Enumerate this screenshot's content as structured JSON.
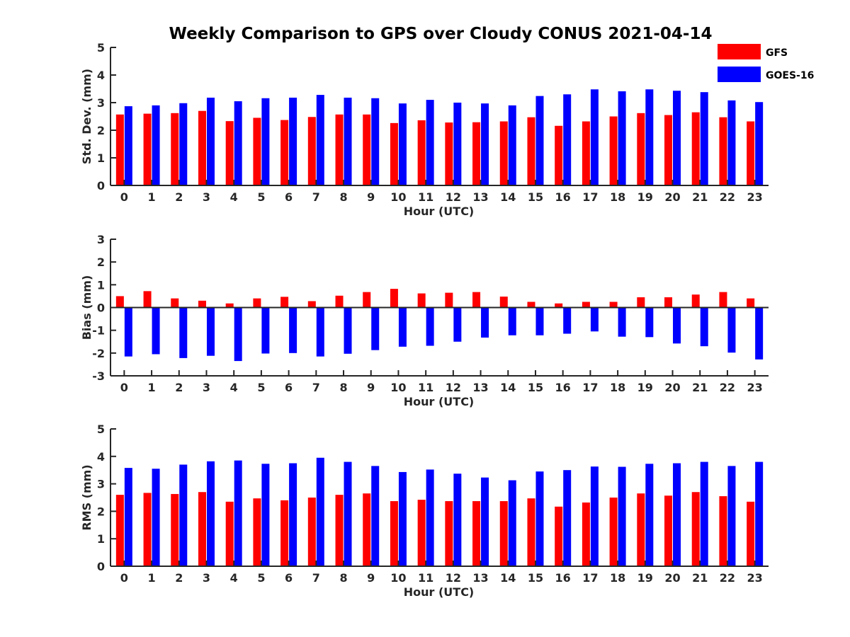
{
  "title": "Weekly Comparison to GPS over Cloudy CONUS 2021-04-14",
  "legend": [
    {
      "name": "GFS",
      "color": "#ff0000"
    },
    {
      "name": "GOES-16",
      "color": "#0000ff"
    }
  ],
  "chart_data": [
    {
      "type": "bar",
      "xlabel": "Hour (UTC)",
      "ylabel": "Std. Dev. (mm)",
      "ylim": [
        0,
        5
      ],
      "yticks": [
        0,
        1,
        2,
        3,
        4,
        5
      ],
      "categories": [
        "0",
        "1",
        "2",
        "3",
        "4",
        "5",
        "6",
        "7",
        "8",
        "9",
        "10",
        "11",
        "12",
        "13",
        "14",
        "15",
        "16",
        "17",
        "18",
        "19",
        "20",
        "21",
        "22",
        "23"
      ],
      "series": [
        {
          "name": "GFS",
          "color": "#ff0000",
          "values": [
            2.57,
            2.6,
            2.62,
            2.7,
            2.33,
            2.45,
            2.37,
            2.48,
            2.57,
            2.57,
            2.26,
            2.36,
            2.28,
            2.29,
            2.32,
            2.47,
            2.16,
            2.32,
            2.5,
            2.62,
            2.55,
            2.65,
            2.47,
            2.32
          ]
        },
        {
          "name": "GOES-16",
          "color": "#0000ff",
          "values": [
            2.87,
            2.9,
            2.98,
            3.18,
            3.05,
            3.16,
            3.18,
            3.28,
            3.18,
            3.16,
            2.97,
            3.1,
            3.0,
            2.97,
            2.9,
            3.24,
            3.3,
            3.48,
            3.41,
            3.48,
            3.43,
            3.38,
            3.08,
            3.02
          ]
        }
      ]
    },
    {
      "type": "bar",
      "xlabel": "Hour (UTC)",
      "ylabel": "Bias (mm)",
      "ylim": [
        -3,
        3
      ],
      "yticks": [
        -3,
        -2,
        -1,
        0,
        1,
        2,
        3
      ],
      "categories": [
        "0",
        "1",
        "2",
        "3",
        "4",
        "5",
        "6",
        "7",
        "8",
        "9",
        "10",
        "11",
        "12",
        "13",
        "14",
        "15",
        "16",
        "17",
        "18",
        "19",
        "20",
        "21",
        "22",
        "23"
      ],
      "series": [
        {
          "name": "GFS",
          "color": "#ff0000",
          "values": [
            0.5,
            0.72,
            0.4,
            0.3,
            0.18,
            0.4,
            0.47,
            0.28,
            0.52,
            0.68,
            0.82,
            0.62,
            0.65,
            0.68,
            0.48,
            0.25,
            0.18,
            0.25,
            0.25,
            0.45,
            0.45,
            0.57,
            0.68,
            0.4
          ]
        },
        {
          "name": "GOES-16",
          "color": "#0000ff",
          "values": [
            -2.15,
            -2.05,
            -2.22,
            -2.12,
            -2.35,
            -2.02,
            -2.0,
            -2.15,
            -2.03,
            -1.87,
            -1.72,
            -1.68,
            -1.5,
            -1.32,
            -1.22,
            -1.22,
            -1.15,
            -1.05,
            -1.28,
            -1.3,
            -1.58,
            -1.7,
            -1.98,
            -2.28
          ]
        }
      ]
    },
    {
      "type": "bar",
      "xlabel": "Hour (UTC)",
      "ylabel": "RMS (mm)",
      "ylim": [
        0,
        5
      ],
      "yticks": [
        0,
        1,
        2,
        3,
        4,
        5
      ],
      "categories": [
        "0",
        "1",
        "2",
        "3",
        "4",
        "5",
        "6",
        "7",
        "8",
        "9",
        "10",
        "11",
        "12",
        "13",
        "14",
        "15",
        "16",
        "17",
        "18",
        "19",
        "20",
        "21",
        "22",
        "23"
      ],
      "series": [
        {
          "name": "GFS",
          "color": "#ff0000",
          "values": [
            2.6,
            2.67,
            2.63,
            2.7,
            2.35,
            2.47,
            2.4,
            2.5,
            2.6,
            2.65,
            2.37,
            2.42,
            2.37,
            2.37,
            2.37,
            2.47,
            2.17,
            2.32,
            2.5,
            2.65,
            2.57,
            2.7,
            2.55,
            2.35
          ]
        },
        {
          "name": "GOES-16",
          "color": "#0000ff",
          "values": [
            3.58,
            3.55,
            3.7,
            3.82,
            3.85,
            3.73,
            3.75,
            3.95,
            3.8,
            3.65,
            3.43,
            3.52,
            3.37,
            3.23,
            3.13,
            3.45,
            3.5,
            3.63,
            3.62,
            3.73,
            3.75,
            3.8,
            3.65,
            3.8
          ]
        }
      ]
    }
  ]
}
